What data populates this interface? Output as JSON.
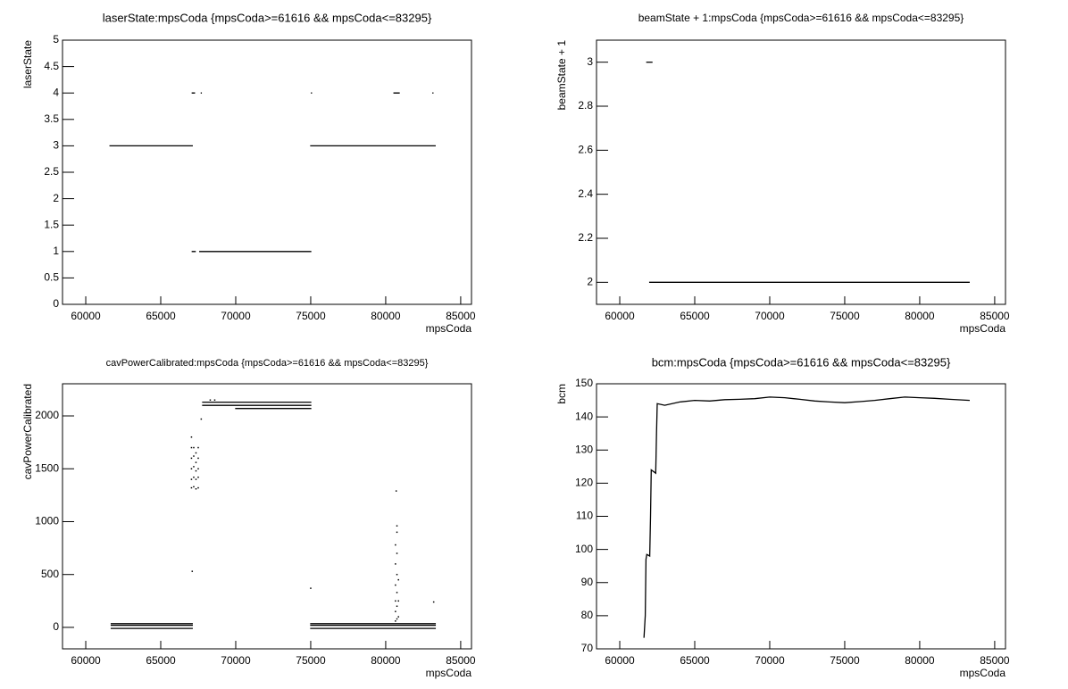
{
  "chart_data": [
    {
      "type": "scatter",
      "title": "laserState:mpsCoda {mpsCoda>=61616 && mpsCoda<=83295}",
      "xlabel": "mpsCoda",
      "ylabel": "laserState",
      "xlim": [
        58450,
        85720
      ],
      "ylim": [
        0,
        5
      ],
      "xticks": [
        60000,
        65000,
        70000,
        75000,
        80000,
        85000
      ],
      "yticks": [
        0,
        0.5,
        1,
        1.5,
        2,
        2.5,
        3,
        3.5,
        4,
        4.5,
        5
      ],
      "series": [
        {
          "color": "#000000",
          "connect": true,
          "x": [
            61616,
            67100,
            67100,
            75000,
            83295
          ],
          "values": [
            3,
            3,
            null,
            3,
            3
          ]
        },
        {
          "color": "#000000",
          "connect": true,
          "x": [
            67100,
            67300,
            67300,
            67600,
            75000
          ],
          "values": [
            1,
            1,
            null,
            1,
            1
          ]
        },
        {
          "color": "#000000",
          "connect": true,
          "x": [
            67100,
            67250,
            67350,
            67700,
            67700,
            75050,
            75050,
            80550,
            80900,
            80900,
            83150
          ],
          "values": [
            4,
            4,
            null,
            4,
            null,
            4,
            null,
            4,
            4,
            null,
            4
          ]
        }
      ]
    },
    {
      "type": "scatter",
      "title": "beamState + 1:mpsCoda {mpsCoda>=61616 && mpsCoda<=83295}",
      "xlabel": "mpsCoda",
      "ylabel": "beamState + 1",
      "xlim": [
        58450,
        85720
      ],
      "ylim": [
        1.9,
        3.1
      ],
      "xticks": [
        60000,
        65000,
        70000,
        75000,
        80000,
        85000
      ],
      "yticks": [
        2,
        2.2,
        2.4,
        2.6,
        2.8,
        3
      ],
      "series": [
        {
          "color": "#000000",
          "connect": true,
          "x": [
            61800,
            62150
          ],
          "values": [
            3,
            3
          ]
        },
        {
          "color": "#000000",
          "connect": true,
          "x": [
            62000,
            83295
          ],
          "values": [
            2,
            2
          ]
        }
      ]
    },
    {
      "type": "scatter",
      "title": "cavPowerCalibrated:mpsCoda {mpsCoda>=61616 && mpsCoda<=83295}",
      "xlabel": "mpsCoda",
      "ylabel": "cavPowerCalibrated",
      "xlim": [
        58450,
        85720
      ],
      "ylim": [
        -203,
        2304
      ],
      "xticks": [
        60000,
        65000,
        70000,
        75000,
        80000,
        85000
      ],
      "yticks": [
        0,
        500,
        1000,
        1500,
        2000
      ],
      "series": [
        {
          "color": "#000000",
          "connect": true,
          "x": [
            61700,
            67100,
            67100,
            75000,
            83300
          ],
          "values": [
            35,
            35,
            null,
            35,
            35
          ]
        },
        {
          "color": "#000000",
          "connect": true,
          "x": [
            61700,
            67100,
            67100,
            75000,
            83300
          ],
          "values": [
            20,
            20,
            null,
            20,
            20
          ]
        },
        {
          "color": "#000000",
          "connect": true,
          "x": [
            61700,
            67100,
            67100,
            75000,
            83300
          ],
          "values": [
            -10,
            -10,
            null,
            -10,
            -10
          ]
        },
        {
          "color": "#000000",
          "connect": true,
          "x": [
            67800,
            75000
          ],
          "values": [
            2130,
            2130
          ]
        },
        {
          "color": "#000000",
          "connect": true,
          "x": [
            67800,
            75000
          ],
          "values": [
            2100,
            2100
          ]
        },
        {
          "color": "#000000",
          "connect": true,
          "x": [
            70000,
            75000
          ],
          "values": [
            2070,
            2070
          ]
        },
        {
          "color": "#000000",
          "connect": false,
          "x": [
            67050,
            67050,
            67050,
            67050,
            67050,
            67050,
            67200,
            67200,
            67200,
            67200,
            67200,
            67350,
            67350,
            67350,
            67350,
            67350,
            67500,
            67500,
            67500,
            67500,
            67500,
            80650,
            80650,
            80650,
            80650,
            80650,
            80650,
            80750,
            80750,
            80750,
            80750,
            80750,
            80750,
            80750,
            80850,
            80850,
            80850,
            67100,
            67700,
            75000,
            80700,
            83200,
            68300,
            68600
          ],
          "values": [
            1320,
            1400,
            1500,
            1600,
            1700,
            1800,
            1330,
            1420,
            1520,
            1620,
            1700,
            1310,
            1400,
            1480,
            1560,
            1650,
            1320,
            1420,
            1500,
            1600,
            1700,
            60,
            150,
            250,
            400,
            600,
            780,
            80,
            200,
            330,
            500,
            700,
            960,
            900,
            100,
            250,
            450,
            530,
            1970,
            370,
            1290,
            240,
            2150,
            2150
          ]
        }
      ]
    },
    {
      "type": "scatter",
      "title": "bcm:mpsCoda {mpsCoda>=61616 && mpsCoda<=83295}",
      "xlabel": "mpsCoda",
      "ylabel": "bcm",
      "xlim": [
        58450,
        85720
      ],
      "ylim": [
        70,
        150
      ],
      "xticks": [
        60000,
        65000,
        70000,
        75000,
        80000,
        85000
      ],
      "yticks": [
        70,
        80,
        90,
        100,
        110,
        120,
        130,
        140,
        150
      ],
      "series": [
        {
          "color": "#000000",
          "connect": true,
          "x": [
            61616,
            61700,
            61750,
            61800,
            62000,
            62050,
            62100,
            62400,
            62450,
            62500,
            63000,
            64000,
            65000,
            66000,
            67000,
            68000,
            69000,
            70000,
            71000,
            72000,
            73000,
            74000,
            75000,
            76000,
            77000,
            78000,
            79000,
            80000,
            81000,
            82000,
            83295
          ],
          "values": [
            73.5,
            80,
            97,
            98.5,
            98,
            110,
            124,
            123,
            135,
            144,
            143.5,
            144.5,
            145,
            144.8,
            145.2,
            145.3,
            145.5,
            146,
            145.8,
            145.3,
            144.8,
            144.5,
            144.3,
            144.6,
            145,
            145.5,
            146,
            145.8,
            145.6,
            145.3,
            145
          ]
        }
      ]
    }
  ]
}
